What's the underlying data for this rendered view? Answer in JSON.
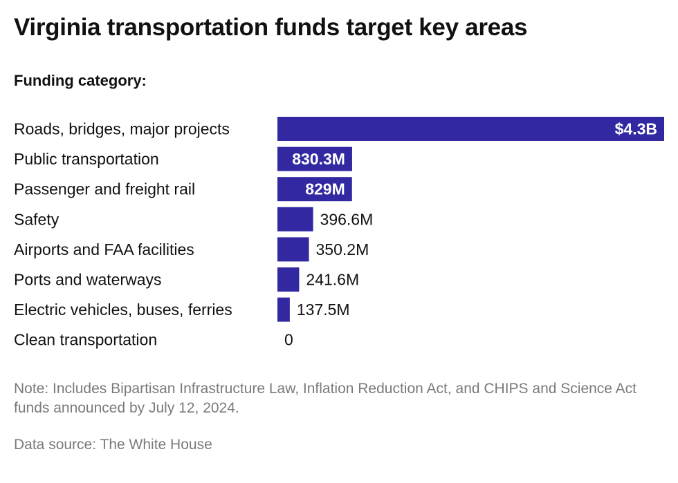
{
  "title": "Virginia transportation funds target key areas",
  "subtitle": "Funding category:",
  "note": "Note: Includes Bipartisan Infrastructure Law, Inflation Reduction Act, and CHIPS and Science Act funds announced by July 12, 2024.",
  "source": "Data source: The White House",
  "colors": {
    "bar": "#3128a2",
    "label_inside": "#ffffff",
    "label_outside": "#111111"
  },
  "chart_data": {
    "type": "bar",
    "orientation": "horizontal",
    "categories": [
      "Roads, bridges, major projects",
      "Public transportation",
      "Passenger and freight rail",
      "Safety",
      "Airports and FAA facilities",
      "Ports and waterways",
      "Electric vehicles, buses, ferries",
      "Clean transportation"
    ],
    "values": [
      4300,
      830.3,
      829,
      396.6,
      350.2,
      241.6,
      137.5,
      0
    ],
    "value_units": "millions of dollars",
    "data_labels": [
      "$4.3B",
      "830.3M",
      "829M",
      "396.6M",
      "350.2M",
      "241.6M",
      "137.5M",
      "0"
    ],
    "xlim": [
      0,
      4300
    ],
    "grid": false,
    "legend": "none"
  }
}
